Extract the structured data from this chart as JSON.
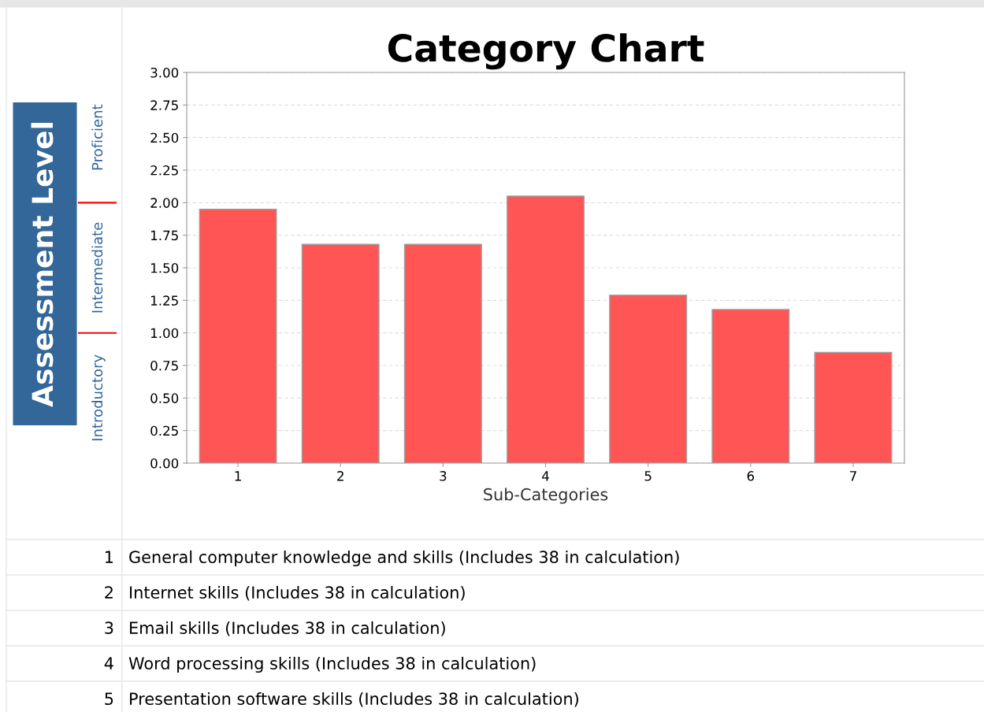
{
  "chart_data": {
    "type": "bar",
    "title": "Category Chart",
    "xlabel": "Sub-Categories",
    "ylabel": "Assessment Level",
    "categories": [
      "1",
      "2",
      "3",
      "4",
      "5",
      "6",
      "7"
    ],
    "values": [
      1.95,
      1.68,
      1.68,
      2.05,
      1.29,
      1.18,
      0.85
    ],
    "color": "#ff5555",
    "ylim": [
      0,
      3
    ],
    "yticks": [
      {
        "value": 0,
        "label": "0.00"
      },
      {
        "value": 0.25,
        "label": "0.25"
      },
      {
        "value": 0.5,
        "label": "0.50"
      },
      {
        "value": 0.75,
        "label": "0.75"
      },
      {
        "value": 1,
        "label": "1.00"
      },
      {
        "value": 1.25,
        "label": "1.25"
      },
      {
        "value": 1.5,
        "label": "1.50"
      },
      {
        "value": 1.75,
        "label": "1.75"
      },
      {
        "value": 2,
        "label": "2.00"
      },
      {
        "value": 2.25,
        "label": "2.25"
      },
      {
        "value": 2.5,
        "label": "2.50"
      },
      {
        "value": 2.75,
        "label": "2.75"
      },
      {
        "value": 3,
        "label": "3.00"
      }
    ],
    "grid": "y",
    "annotations": [
      "Introductory",
      "Intermediate",
      "Proficient",
      "General computer knowledge and skills (Includes 38 in calculation)",
      "Internet skills (Includes 38 in calculation)",
      "Email skills (Includes 38 in calculation)",
      "Word processing skills (Includes 38 in calculation)",
      "Presentation software skills (Includes 38 in calculation)"
    ]
  }
}
